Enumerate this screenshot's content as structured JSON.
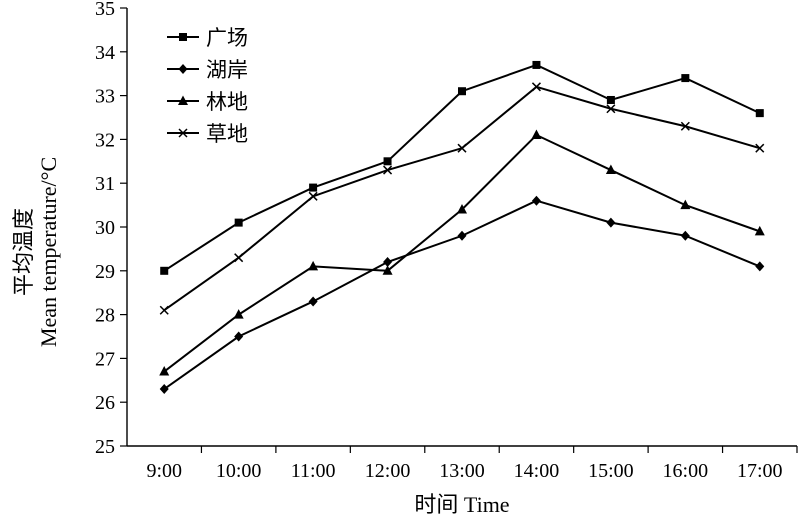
{
  "chart_data": {
    "type": "line",
    "categories": [
      "9:00",
      "10:00",
      "11:00",
      "12:00",
      "13:00",
      "14:00",
      "15:00",
      "16:00",
      "17:00"
    ],
    "series": [
      {
        "name": "广场",
        "marker": "square",
        "values": [
          29.0,
          30.1,
          30.9,
          31.5,
          33.1,
          33.7,
          32.9,
          33.4,
          32.6
        ]
      },
      {
        "name": "湖岸",
        "marker": "diamond",
        "values": [
          26.3,
          27.5,
          28.3,
          29.2,
          29.8,
          30.6,
          30.1,
          29.8,
          29.1
        ]
      },
      {
        "name": "林地",
        "marker": "triangle",
        "values": [
          26.7,
          28.0,
          29.1,
          29.0,
          30.4,
          32.1,
          31.3,
          30.5,
          29.9
        ]
      },
      {
        "name": "草地",
        "marker": "x",
        "values": [
          28.1,
          29.3,
          30.7,
          31.3,
          31.8,
          33.2,
          32.7,
          32.3,
          31.8
        ]
      }
    ],
    "xlabel": "时间 Time",
    "ylabel_cn": "平均温度",
    "ylabel_en": "Mean temperature/°C",
    "ylim": [
      25,
      35
    ],
    "yticks": [
      25,
      26,
      27,
      28,
      29,
      30,
      31,
      32,
      33,
      34,
      35
    ],
    "grid": false,
    "legend_position": "top-left",
    "color": "#000000"
  }
}
